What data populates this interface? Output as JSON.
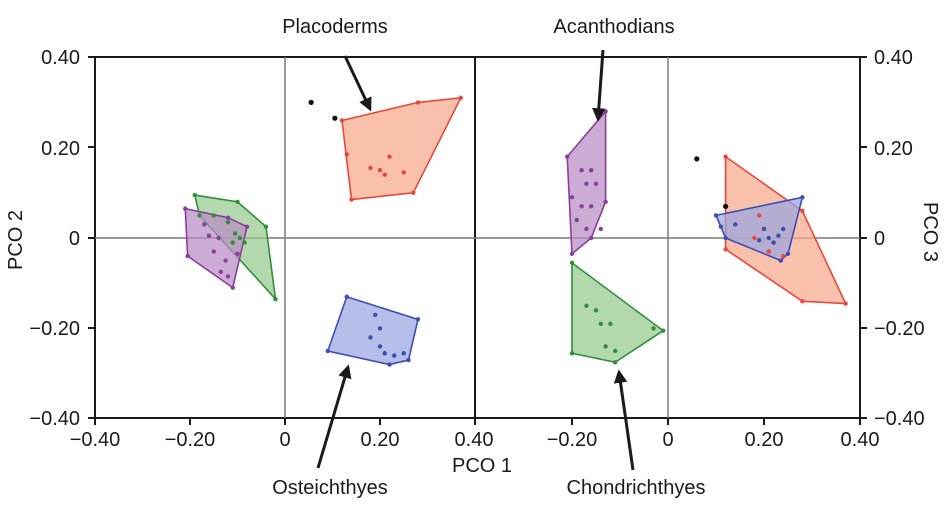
{
  "chart_data": {
    "type": "scatter",
    "xlabel": "PCO 1",
    "ylabel_left": "PCO 2",
    "ylabel_right": "PCO 3",
    "x_ticks": [
      "−0.40",
      "−0.20",
      "0",
      "0.20",
      "0.40",
      "−0.20",
      "0",
      "0.20",
      "0.40"
    ],
    "y_ticks_left": [
      "0.40",
      "0.20",
      "0",
      "−0.20",
      "−0.40"
    ],
    "y_ticks_right": [
      "0.40",
      "0.20",
      "0",
      "−0.20",
      "−0.40"
    ],
    "xlim": [
      -0.4,
      0.4
    ],
    "ylim": [
      -0.4,
      0.4
    ],
    "grid": false,
    "annotations": {
      "placoderms": "Placoderms",
      "acanthodians": "Acanthodians",
      "osteichthyes": "Osteichthyes",
      "chondrichthyes": "Chondrichthyes"
    },
    "colors": {
      "placoderms": "#e8473b",
      "acanthodians": "#8a3f9c",
      "osteichthyes": "#3b4fb0",
      "chondrichthyes": "#2f8f3a",
      "outlier": "#111111"
    },
    "panels": [
      {
        "axis": "PCO 1 vs PCO 2",
        "groups": [
          {
            "group": "placoderms",
            "hull": [
              [
                0.12,
                0.26
              ],
              [
                0.28,
                0.3
              ],
              [
                0.37,
                0.31
              ],
              [
                0.27,
                0.1
              ],
              [
                0.14,
                0.085
              ]
            ],
            "points": [
              [
                0.12,
                0.26
              ],
              [
                0.28,
                0.3
              ],
              [
                0.37,
                0.31
              ],
              [
                0.27,
                0.1
              ],
              [
                0.14,
                0.085
              ],
              [
                0.13,
                0.185
              ],
              [
                0.18,
                0.155
              ],
              [
                0.2,
                0.15
              ],
              [
                0.22,
                0.18
              ],
              [
                0.21,
                0.14
              ],
              [
                0.25,
                0.145
              ]
            ]
          },
          {
            "group": "osteichthyes",
            "hull": [
              [
                0.13,
                -0.13
              ],
              [
                0.28,
                -0.18
              ],
              [
                0.26,
                -0.27
              ],
              [
                0.22,
                -0.28
              ],
              [
                0.09,
                -0.25
              ]
            ],
            "points": [
              [
                0.13,
                -0.13
              ],
              [
                0.28,
                -0.18
              ],
              [
                0.26,
                -0.27
              ],
              [
                0.22,
                -0.28
              ],
              [
                0.09,
                -0.25
              ],
              [
                0.19,
                -0.17
              ],
              [
                0.2,
                -0.2
              ],
              [
                0.18,
                -0.22
              ],
              [
                0.2,
                -0.24
              ],
              [
                0.21,
                -0.255
              ],
              [
                0.23,
                -0.26
              ],
              [
                0.25,
                -0.255
              ]
            ]
          },
          {
            "group": "chondrichthyes",
            "hull": [
              [
                -0.19,
                0.095
              ],
              [
                -0.1,
                0.08
              ],
              [
                -0.04,
                0.025
              ],
              [
                -0.02,
                -0.135
              ],
              [
                -0.18,
                0.05
              ]
            ],
            "points": [
              [
                -0.19,
                0.095
              ],
              [
                -0.1,
                0.08
              ],
              [
                -0.04,
                0.025
              ],
              [
                -0.02,
                -0.135
              ],
              [
                -0.18,
                0.05
              ],
              [
                -0.15,
                0.05
              ],
              [
                -0.12,
                0.035
              ],
              [
                -0.105,
                0.01
              ],
              [
                -0.095,
                0.0
              ],
              [
                -0.11,
                -0.01
              ],
              [
                -0.085,
                -0.01
              ]
            ]
          },
          {
            "group": "acanthodians",
            "hull": [
              [
                -0.21,
                0.065
              ],
              [
                -0.12,
                0.045
              ],
              [
                -0.08,
                0.025
              ],
              [
                -0.11,
                -0.11
              ],
              [
                -0.205,
                -0.04
              ]
            ],
            "points": [
              [
                -0.21,
                0.065
              ],
              [
                -0.12,
                0.045
              ],
              [
                -0.08,
                0.025
              ],
              [
                -0.11,
                -0.11
              ],
              [
                -0.205,
                -0.04
              ],
              [
                -0.17,
                0.03
              ],
              [
                -0.16,
                0.005
              ],
              [
                -0.14,
                0.0
              ],
              [
                -0.15,
                -0.03
              ],
              [
                -0.125,
                -0.05
              ],
              [
                -0.135,
                -0.075
              ],
              [
                -0.12,
                -0.085
              ],
              [
                -0.1,
                -0.035
              ]
            ]
          },
          {
            "group": "outlier",
            "points": [
              [
                0.055,
                0.3
              ],
              [
                0.105,
                0.265
              ]
            ]
          }
        ]
      },
      {
        "axis": "PCO 1 vs PCO 3",
        "groups": [
          {
            "group": "acanthodians",
            "hull": [
              [
                -0.21,
                0.18
              ],
              [
                -0.13,
                0.28
              ],
              [
                -0.13,
                0.28
              ],
              [
                -0.13,
                0.08
              ],
              [
                -0.16,
                0.0
              ],
              [
                -0.2,
                -0.035
              ]
            ],
            "points": [
              [
                -0.21,
                0.18
              ],
              [
                -0.13,
                0.28
              ],
              [
                -0.13,
                0.08
              ],
              [
                -0.16,
                0.0
              ],
              [
                -0.2,
                -0.035
              ],
              [
                -0.18,
                0.15
              ],
              [
                -0.16,
                0.15
              ],
              [
                -0.17,
                0.12
              ],
              [
                -0.15,
                0.12
              ],
              [
                -0.2,
                0.09
              ],
              [
                -0.18,
                0.07
              ],
              [
                -0.16,
                0.07
              ],
              [
                -0.19,
                0.04
              ],
              [
                -0.17,
                0.02
              ],
              [
                -0.14,
                0.02
              ]
            ]
          },
          {
            "group": "chondrichthyes",
            "hull": [
              [
                -0.2,
                -0.055
              ],
              [
                -0.01,
                -0.205
              ],
              [
                -0.11,
                -0.275
              ],
              [
                -0.2,
                -0.255
              ]
            ],
            "points": [
              [
                -0.2,
                -0.055
              ],
              [
                -0.01,
                -0.205
              ],
              [
                -0.11,
                -0.275
              ],
              [
                -0.2,
                -0.255
              ],
              [
                -0.17,
                -0.15
              ],
              [
                -0.15,
                -0.16
              ],
              [
                -0.14,
                -0.19
              ],
              [
                -0.12,
                -0.19
              ],
              [
                -0.13,
                -0.24
              ],
              [
                -0.11,
                -0.25
              ],
              [
                -0.03,
                -0.2
              ]
            ]
          },
          {
            "group": "placoderms",
            "hull": [
              [
                0.12,
                0.18
              ],
              [
                0.28,
                0.06
              ],
              [
                0.37,
                -0.145
              ],
              [
                0.28,
                -0.14
              ],
              [
                0.12,
                -0.025
              ]
            ],
            "points": [
              [
                0.12,
                0.18
              ],
              [
                0.28,
                0.06
              ],
              [
                0.37,
                -0.145
              ],
              [
                0.28,
                -0.14
              ],
              [
                0.12,
                -0.025
              ],
              [
                0.19,
                0.05
              ],
              [
                0.2,
                0.02
              ],
              [
                0.18,
                0.0
              ],
              [
                0.22,
                -0.01
              ],
              [
                0.24,
                -0.04
              ],
              [
                0.21,
                -0.03
              ]
            ]
          },
          {
            "group": "osteichthyes",
            "hull": [
              [
                0.1,
                0.05
              ],
              [
                0.28,
                0.09
              ],
              [
                0.25,
                -0.035
              ],
              [
                0.235,
                -0.05
              ],
              [
                0.12,
                0.0
              ]
            ],
            "points": [
              [
                0.1,
                0.05
              ],
              [
                0.28,
                0.09
              ],
              [
                0.25,
                -0.035
              ],
              [
                0.235,
                -0.05
              ],
              [
                0.12,
                0.0
              ],
              [
                0.11,
                0.025
              ],
              [
                0.14,
                0.03
              ],
              [
                0.2,
                0.02
              ],
              [
                0.21,
                0.0
              ],
              [
                0.22,
                -0.01
              ],
              [
                0.23,
                0.005
              ],
              [
                0.24,
                0.02
              ],
              [
                0.19,
                -0.005
              ]
            ]
          },
          {
            "group": "outlier",
            "points": [
              [
                0.06,
                0.175
              ],
              [
                0.12,
                0.07
              ]
            ]
          }
        ]
      }
    ]
  }
}
